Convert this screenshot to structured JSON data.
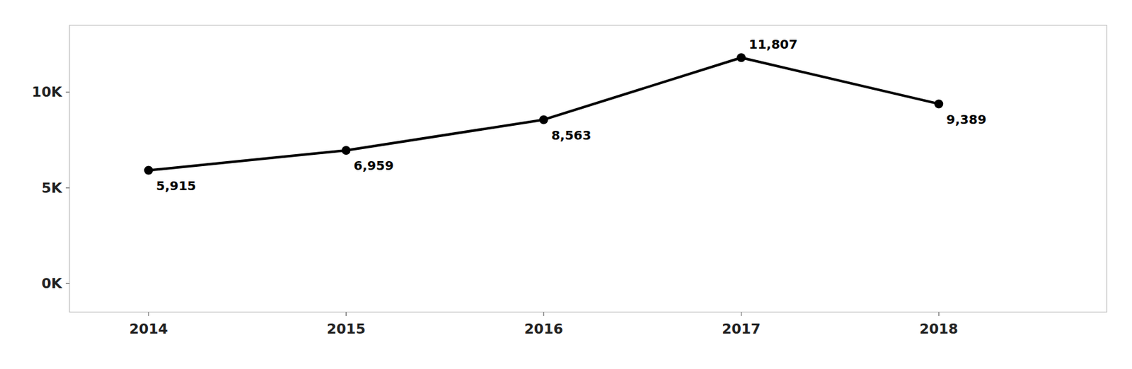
{
  "chart_data": {
    "type": "line",
    "x": [
      2014,
      2015,
      2016,
      2017,
      2018
    ],
    "values": [
      5915,
      6959,
      8563,
      11807,
      9389
    ],
    "value_labels": [
      "5,915",
      "6,959",
      "8,563",
      "11,807",
      "9,389"
    ],
    "data_labels": true,
    "color": "#000000",
    "marker": "circle",
    "grid": false,
    "xlim": [
      2013.6,
      2018.85
    ],
    "xticks": [
      2014,
      2015,
      2016,
      2017,
      2018
    ],
    "ylim": [
      -1500,
      13500
    ],
    "yticks": [
      {
        "value": 0,
        "label": "0K"
      },
      {
        "value": 5000,
        "label": "5K"
      },
      {
        "value": 10000,
        "label": "10K"
      }
    ]
  }
}
